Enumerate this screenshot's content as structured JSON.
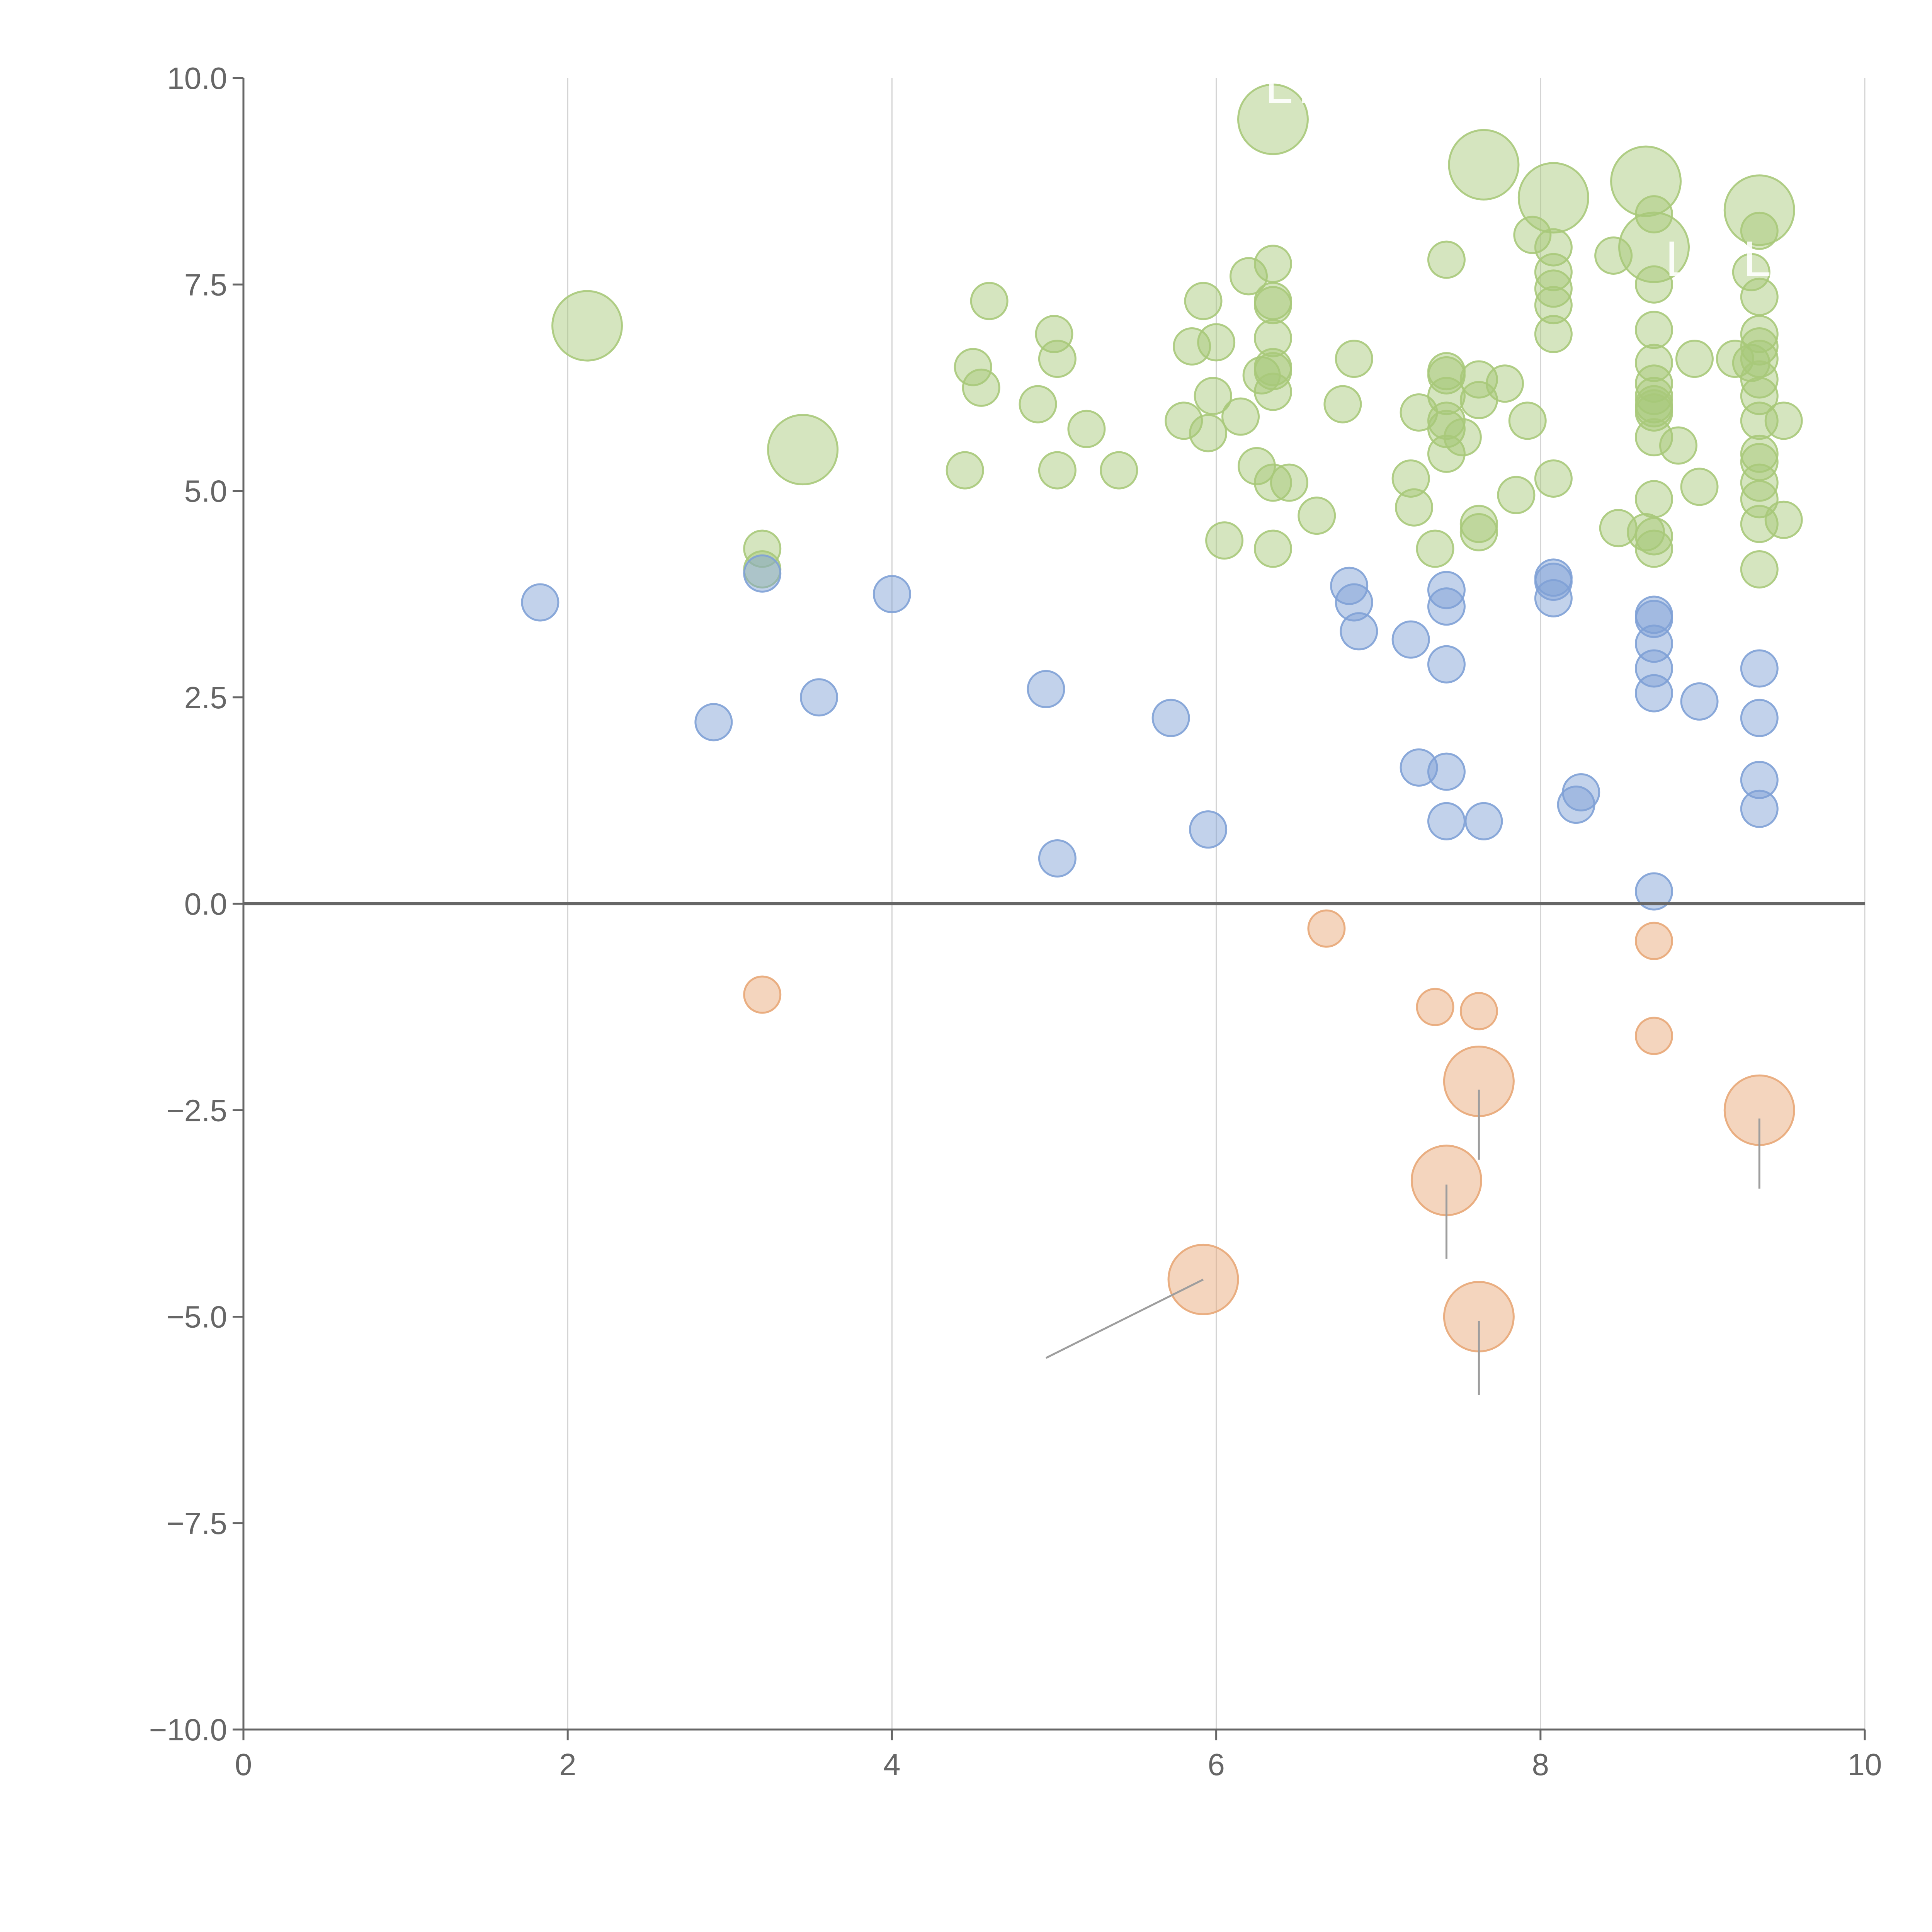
{
  "chart_data": {
    "type": "scatter",
    "title": "",
    "xlabel": "",
    "ylabel": "",
    "xlim": [
      0,
      10
    ],
    "ylim": [
      -10,
      10
    ],
    "grid": {
      "x": true,
      "y": false
    },
    "x_ticks": [
      "0",
      "2",
      "4",
      "6",
      "8",
      "10"
    ],
    "y_ticks": [
      "10.0",
      "7.5",
      "5.0",
      "2.5",
      "0.0",
      "−2.5",
      "−5.0",
      "−7.5",
      "−10.0"
    ],
    "colors": {
      "green": "#a8c97a",
      "blue": "#7fa1d6",
      "orange": "#e8a777",
      "axis": "#666666",
      "grid": "#d4d4d4"
    },
    "series": [
      {
        "name": "green",
        "color": "#a8c97a",
        "points": [
          {
            "x": 2.12,
            "y": 7.0,
            "size": 3
          },
          {
            "x": 3.45,
            "y": 5.5,
            "size": 3
          },
          {
            "x": 6.35,
            "y": 9.5,
            "size": 3
          },
          {
            "x": 7.65,
            "y": 8.95,
            "size": 3
          },
          {
            "x": 8.08,
            "y": 8.55,
            "size": 3
          },
          {
            "x": 8.65,
            "y": 8.75,
            "size": 3
          },
          {
            "x": 8.7,
            "y": 7.95,
            "size": 3
          },
          {
            "x": 9.35,
            "y": 8.4,
            "size": 3
          },
          {
            "x": 3.2,
            "y": 4.3,
            "size": 1
          },
          {
            "x": 3.2,
            "y": 4.05,
            "size": 1
          },
          {
            "x": 4.45,
            "y": 5.25,
            "size": 1
          },
          {
            "x": 4.5,
            "y": 6.5,
            "size": 1
          },
          {
            "x": 4.55,
            "y": 6.25,
            "size": 1
          },
          {
            "x": 4.6,
            "y": 7.3,
            "size": 1
          },
          {
            "x": 4.9,
            "y": 6.05,
            "size": 1
          },
          {
            "x": 5.0,
            "y": 6.9,
            "size": 1
          },
          {
            "x": 5.02,
            "y": 6.6,
            "size": 1
          },
          {
            "x": 5.02,
            "y": 5.25,
            "size": 1
          },
          {
            "x": 5.2,
            "y": 5.75,
            "size": 1
          },
          {
            "x": 5.4,
            "y": 5.25,
            "size": 1
          },
          {
            "x": 5.8,
            "y": 5.85,
            "size": 1
          },
          {
            "x": 5.85,
            "y": 6.75,
            "size": 1
          },
          {
            "x": 5.92,
            "y": 7.3,
            "size": 1
          },
          {
            "x": 5.95,
            "y": 5.7,
            "size": 1
          },
          {
            "x": 5.98,
            "y": 6.15,
            "size": 1
          },
          {
            "x": 6.0,
            "y": 6.8,
            "size": 1
          },
          {
            "x": 6.05,
            "y": 4.4,
            "size": 1
          },
          {
            "x": 6.15,
            "y": 5.9,
            "size": 1
          },
          {
            "x": 6.2,
            "y": 7.6,
            "size": 1
          },
          {
            "x": 6.25,
            "y": 5.3,
            "size": 1
          },
          {
            "x": 6.28,
            "y": 6.4,
            "size": 1
          },
          {
            "x": 6.35,
            "y": 7.75,
            "size": 1
          },
          {
            "x": 6.35,
            "y": 7.3,
            "size": 1
          },
          {
            "x": 6.35,
            "y": 7.25,
            "size": 1
          },
          {
            "x": 6.35,
            "y": 6.85,
            "size": 1
          },
          {
            "x": 6.35,
            "y": 6.5,
            "size": 1
          },
          {
            "x": 6.35,
            "y": 6.45,
            "size": 1
          },
          {
            "x": 6.35,
            "y": 6.2,
            "size": 1
          },
          {
            "x": 6.35,
            "y": 5.1,
            "size": 1
          },
          {
            "x": 6.35,
            "y": 4.3,
            "size": 1
          },
          {
            "x": 6.45,
            "y": 5.1,
            "size": 1
          },
          {
            "x": 6.62,
            "y": 4.7,
            "size": 1
          },
          {
            "x": 6.78,
            "y": 6.05,
            "size": 1
          },
          {
            "x": 6.85,
            "y": 6.6,
            "size": 1
          },
          {
            "x": 7.2,
            "y": 5.15,
            "size": 1
          },
          {
            "x": 7.22,
            "y": 4.8,
            "size": 1
          },
          {
            "x": 7.25,
            "y": 5.95,
            "size": 1
          },
          {
            "x": 7.35,
            "y": 4.3,
            "size": 1
          },
          {
            "x": 7.42,
            "y": 7.8,
            "size": 1
          },
          {
            "x": 7.42,
            "y": 6.45,
            "size": 1
          },
          {
            "x": 7.42,
            "y": 6.4,
            "size": 1
          },
          {
            "x": 7.42,
            "y": 6.15,
            "size": 1
          },
          {
            "x": 7.42,
            "y": 5.85,
            "size": 1
          },
          {
            "x": 7.42,
            "y": 5.75,
            "size": 1
          },
          {
            "x": 7.42,
            "y": 5.45,
            "size": 1
          },
          {
            "x": 7.52,
            "y": 5.65,
            "size": 1
          },
          {
            "x": 7.62,
            "y": 6.35,
            "size": 1
          },
          {
            "x": 7.62,
            "y": 6.1,
            "size": 1
          },
          {
            "x": 7.62,
            "y": 4.6,
            "size": 1
          },
          {
            "x": 7.62,
            "y": 4.5,
            "size": 1
          },
          {
            "x": 7.78,
            "y": 6.3,
            "size": 1
          },
          {
            "x": 7.85,
            "y": 4.95,
            "size": 1
          },
          {
            "x": 7.92,
            "y": 5.85,
            "size": 1
          },
          {
            "x": 7.95,
            "y": 8.1,
            "size": 1
          },
          {
            "x": 8.08,
            "y": 7.95,
            "size": 1
          },
          {
            "x": 8.08,
            "y": 7.65,
            "size": 1
          },
          {
            "x": 8.08,
            "y": 7.45,
            "size": 1
          },
          {
            "x": 8.08,
            "y": 7.25,
            "size": 1
          },
          {
            "x": 8.08,
            "y": 6.9,
            "size": 1
          },
          {
            "x": 8.08,
            "y": 5.15,
            "size": 1
          },
          {
            "x": 8.45,
            "y": 7.85,
            "size": 1
          },
          {
            "x": 8.48,
            "y": 4.55,
            "size": 1
          },
          {
            "x": 8.65,
            "y": 4.5,
            "size": 1
          },
          {
            "x": 8.7,
            "y": 8.35,
            "size": 1
          },
          {
            "x": 8.7,
            "y": 7.5,
            "size": 1
          },
          {
            "x": 8.7,
            "y": 6.95,
            "size": 1
          },
          {
            "x": 8.7,
            "y": 6.55,
            "size": 1
          },
          {
            "x": 8.7,
            "y": 6.3,
            "size": 1
          },
          {
            "x": 8.7,
            "y": 6.15,
            "size": 1
          },
          {
            "x": 8.7,
            "y": 6.05,
            "size": 1
          },
          {
            "x": 8.7,
            "y": 6.0,
            "size": 1
          },
          {
            "x": 8.7,
            "y": 5.95,
            "size": 1
          },
          {
            "x": 8.7,
            "y": 5.65,
            "size": 1
          },
          {
            "x": 8.7,
            "y": 4.9,
            "size": 1
          },
          {
            "x": 8.7,
            "y": 4.45,
            "size": 1
          },
          {
            "x": 8.7,
            "y": 4.3,
            "size": 1
          },
          {
            "x": 8.85,
            "y": 5.55,
            "size": 1
          },
          {
            "x": 8.95,
            "y": 6.6,
            "size": 1
          },
          {
            "x": 8.98,
            "y": 5.05,
            "size": 1
          },
          {
            "x": 9.2,
            "y": 6.6,
            "size": 1
          },
          {
            "x": 9.3,
            "y": 7.65,
            "size": 1
          },
          {
            "x": 9.3,
            "y": 6.55,
            "size": 1
          },
          {
            "x": 9.35,
            "y": 8.15,
            "size": 1
          },
          {
            "x": 9.35,
            "y": 7.35,
            "size": 1
          },
          {
            "x": 9.35,
            "y": 6.9,
            "size": 1
          },
          {
            "x": 9.35,
            "y": 6.75,
            "size": 1
          },
          {
            "x": 9.35,
            "y": 6.6,
            "size": 1
          },
          {
            "x": 9.35,
            "y": 6.35,
            "size": 1
          },
          {
            "x": 9.35,
            "y": 6.15,
            "size": 1
          },
          {
            "x": 9.35,
            "y": 5.85,
            "size": 1
          },
          {
            "x": 9.35,
            "y": 5.45,
            "size": 1
          },
          {
            "x": 9.35,
            "y": 5.35,
            "size": 1
          },
          {
            "x": 9.35,
            "y": 5.1,
            "size": 1
          },
          {
            "x": 9.35,
            "y": 4.9,
            "size": 1
          },
          {
            "x": 9.35,
            "y": 4.6,
            "size": 1
          },
          {
            "x": 9.35,
            "y": 4.05,
            "size": 1
          },
          {
            "x": 9.5,
            "y": 5.85,
            "size": 1
          },
          {
            "x": 9.5,
            "y": 4.65,
            "size": 1
          }
        ]
      },
      {
        "name": "blue",
        "color": "#7fa1d6",
        "points": [
          {
            "x": 1.83,
            "y": 3.65,
            "size": 1
          },
          {
            "x": 2.9,
            "y": 2.2,
            "size": 1
          },
          {
            "x": 3.2,
            "y": 4.0,
            "size": 1
          },
          {
            "x": 3.55,
            "y": 2.5,
            "size": 1
          },
          {
            "x": 4.0,
            "y": 3.75,
            "size": 1
          },
          {
            "x": 4.95,
            "y": 2.6,
            "size": 1
          },
          {
            "x": 5.02,
            "y": 0.55,
            "size": 1
          },
          {
            "x": 5.72,
            "y": 2.25,
            "size": 1
          },
          {
            "x": 5.95,
            "y": 0.9,
            "size": 1
          },
          {
            "x": 6.82,
            "y": 3.85,
            "size": 1
          },
          {
            "x": 6.85,
            "y": 3.65,
            "size": 1
          },
          {
            "x": 6.88,
            "y": 3.3,
            "size": 1
          },
          {
            "x": 7.2,
            "y": 3.2,
            "size": 1
          },
          {
            "x": 7.25,
            "y": 1.65,
            "size": 1
          },
          {
            "x": 7.42,
            "y": 3.8,
            "size": 1
          },
          {
            "x": 7.42,
            "y": 3.6,
            "size": 1
          },
          {
            "x": 7.42,
            "y": 2.9,
            "size": 1
          },
          {
            "x": 7.42,
            "y": 1.6,
            "size": 1
          },
          {
            "x": 7.42,
            "y": 1.0,
            "size": 1
          },
          {
            "x": 7.65,
            "y": 1.0,
            "size": 1
          },
          {
            "x": 8.08,
            "y": 3.95,
            "size": 1
          },
          {
            "x": 8.08,
            "y": 3.9,
            "size": 1
          },
          {
            "x": 8.08,
            "y": 3.7,
            "size": 1
          },
          {
            "x": 8.22,
            "y": 1.2,
            "size": 1
          },
          {
            "x": 8.25,
            "y": 1.35,
            "size": 1
          },
          {
            "x": 8.7,
            "y": 3.5,
            "size": 1
          },
          {
            "x": 8.7,
            "y": 3.45,
            "size": 1
          },
          {
            "x": 8.7,
            "y": 3.15,
            "size": 1
          },
          {
            "x": 8.7,
            "y": 2.85,
            "size": 1
          },
          {
            "x": 8.7,
            "y": 2.55,
            "size": 1
          },
          {
            "x": 8.7,
            "y": 0.15,
            "size": 1
          },
          {
            "x": 8.98,
            "y": 2.45,
            "size": 1
          },
          {
            "x": 9.35,
            "y": 2.85,
            "size": 1
          },
          {
            "x": 9.35,
            "y": 2.25,
            "size": 1
          },
          {
            "x": 9.35,
            "y": 1.5,
            "size": 1
          },
          {
            "x": 9.35,
            "y": 1.15,
            "size": 1
          }
        ]
      },
      {
        "name": "orange",
        "color": "#e8a777",
        "points": [
          {
            "x": 3.2,
            "y": -1.1,
            "size": 1
          },
          {
            "x": 6.68,
            "y": -0.3,
            "size": 1
          },
          {
            "x": 7.35,
            "y": -1.25,
            "size": 1
          },
          {
            "x": 7.62,
            "y": -1.3,
            "size": 1
          },
          {
            "x": 8.7,
            "y": -0.45,
            "size": 1
          },
          {
            "x": 8.7,
            "y": -1.6,
            "size": 1
          },
          {
            "x": 7.62,
            "y": -2.15,
            "size": 3
          },
          {
            "x": 9.35,
            "y": -2.5,
            "size": 3
          },
          {
            "x": 7.42,
            "y": -3.35,
            "size": 3
          },
          {
            "x": 5.92,
            "y": -4.55,
            "size": 3
          },
          {
            "x": 7.62,
            "y": -5.0,
            "size": 3
          }
        ]
      }
    ],
    "annotations": [
      {
        "x1": 5.92,
        "y1": -4.55,
        "x2": 4.95,
        "y2": -5.5
      },
      {
        "x1": 7.62,
        "y1": -2.25,
        "x2": 7.62,
        "y2": -3.1
      },
      {
        "x1": 7.42,
        "y1": -3.4,
        "x2": 7.42,
        "y2": -4.3
      },
      {
        "x1": 7.62,
        "y1": -5.05,
        "x2": 7.62,
        "y2": -5.95
      },
      {
        "x1": 9.35,
        "y1": -2.6,
        "x2": 9.35,
        "y2": -3.45
      }
    ],
    "faint_labels": [
      {
        "text": "LTX",
        "x": 6.3,
        "y": 9.7
      },
      {
        "text": "L",
        "x": 8.77,
        "y": 7.6
      },
      {
        "text": "LE",
        "x": 9.25,
        "y": 7.6
      }
    ]
  }
}
